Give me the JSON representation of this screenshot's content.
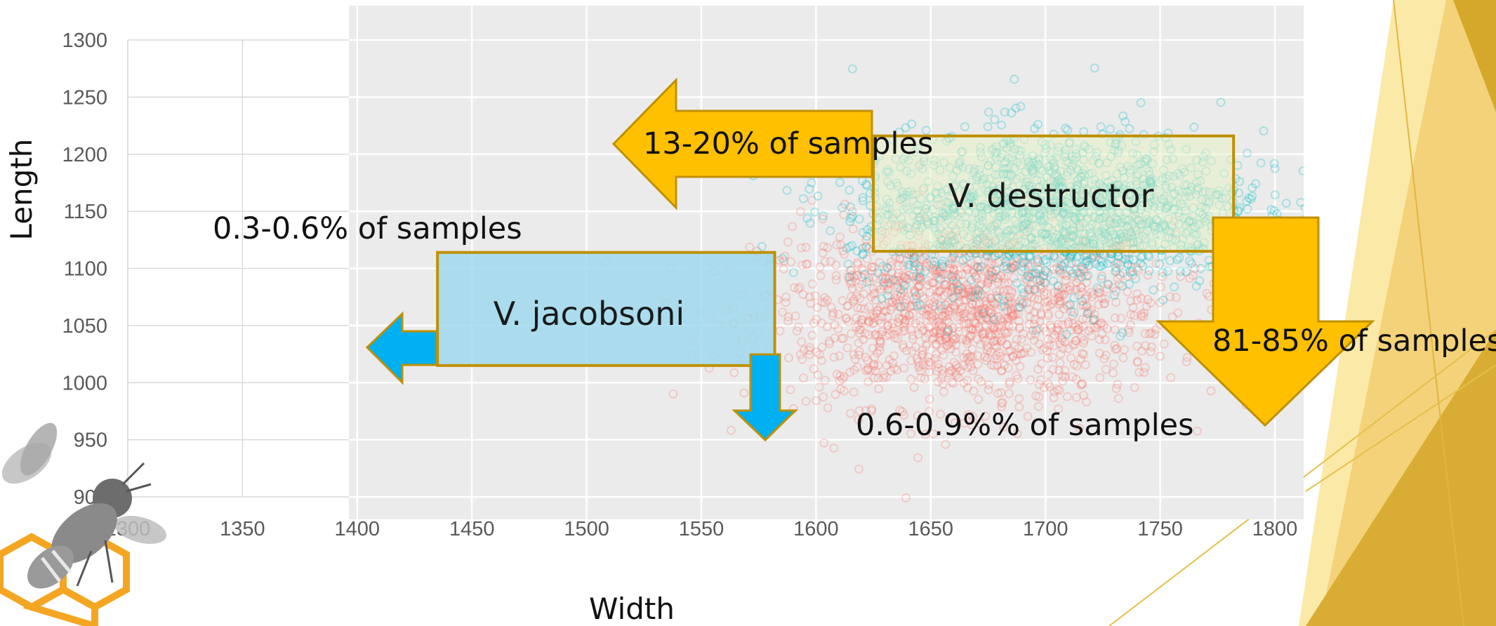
{
  "chart_data": {
    "type": "scatter",
    "xlabel": "Width",
    "ylabel": "Length",
    "xlim": [
      1300,
      1800
    ],
    "ylim": [
      900,
      1300
    ],
    "x_ticks": [
      "1300",
      "1350",
      "1400",
      "1450",
      "1500",
      "1550",
      "1600",
      "1650",
      "1700",
      "1750",
      "1800"
    ],
    "y_ticks": [
      "1300",
      "1250",
      "1200",
      "1150",
      "1100",
      "1050",
      "1000",
      "950",
      "900"
    ],
    "grid": true,
    "series": [
      {
        "color": "#f8766d",
        "center": [
          1665,
          1060
        ],
        "spread": [
          45,
          40
        ],
        "count": 1400
      },
      {
        "color": "#00bfc4",
        "center": [
          1705,
          1150
        ],
        "spread": [
          45,
          35
        ],
        "count": 1500
      }
    ],
    "regions": [
      {
        "label": "V. destructor",
        "x": [
          1625,
          1782
        ],
        "y": [
          1115,
          1216
        ],
        "fill": "#e8f0c6"
      },
      {
        "label": "V. jacobsoni",
        "x": [
          1435,
          1582
        ],
        "y": [
          1015,
          1114
        ],
        "fill": "#9fd9ee"
      }
    ],
    "annotations": [
      {
        "text": "13-20% of samples",
        "direction": "left",
        "color": "#ffc000"
      },
      {
        "text": "81-85% of samples",
        "direction": "down",
        "color": "#ffc000"
      },
      {
        "text": "0.3-0.6% of samples",
        "direction": "left",
        "color": "#00b0f0"
      },
      {
        "text": "0.6-0.9%% of samples",
        "direction": "down",
        "color": "#00b0f0"
      }
    ]
  },
  "colors": {
    "plot_background": "#ebebeb",
    "arrow_yellow": "#ffc000",
    "arrow_blue": "#00b0f0",
    "arrow_border": "#bf9000",
    "slide_gold": "#d4a92b"
  },
  "decorations": {
    "logo_icon": "honeybee-honeycomb-logo-icon"
  }
}
